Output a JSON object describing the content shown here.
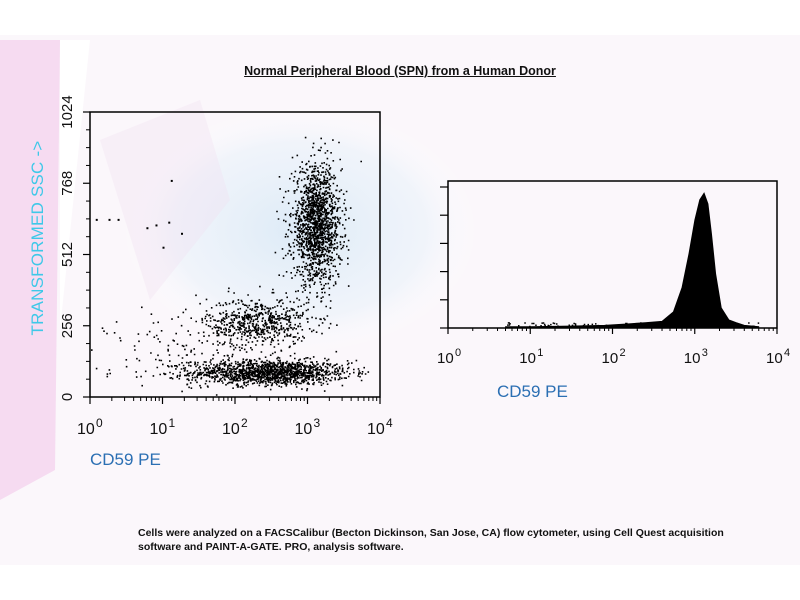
{
  "title": "Normal Peripheral Blood (SPN) from a Human Donor",
  "footnote": "Cells were analyzed on a FACSCalibur (Becton Dickinson, San Jose, CA) flow cytometer, using Cell Quest acquisition software and PAINT-A-GATE. PRO, analysis software.",
  "colors": {
    "ylabel": "#3ec8e8",
    "xlabel": "#2b6fb3",
    "points": "#000000"
  },
  "chart_data": [
    {
      "type": "scatter",
      "title": "",
      "xlabel": "CD59 PE",
      "ylabel": "TRANSFORMED SSC ->",
      "x_scale": "log",
      "xlim": [
        1,
        10000
      ],
      "ylim": [
        0,
        1024
      ],
      "x_ticks": [
        {
          "base": "10",
          "exp": "0"
        },
        {
          "base": "10",
          "exp": "1"
        },
        {
          "base": "10",
          "exp": "2"
        },
        {
          "base": "10",
          "exp": "3"
        },
        {
          "base": "10",
          "exp": "4"
        }
      ],
      "y_ticks": [
        "0",
        "256",
        "512",
        "768",
        "1024"
      ],
      "populations": [
        {
          "x_center": 300,
          "y_center": 90,
          "x_spread_decades": 0.55,
          "y_spread": 22,
          "count": 1400
        },
        {
          "x_center": 200,
          "y_center": 270,
          "x_spread_decades": 0.35,
          "y_spread": 45,
          "count": 600
        },
        {
          "x_center": 1300,
          "y_center": 620,
          "x_spread_decades": 0.17,
          "y_spread": 105,
          "count": 1500
        },
        {
          "x_center": 30,
          "y_center": 150,
          "x_spread_decades": 0.6,
          "y_spread": 90,
          "count": 160
        }
      ],
      "outlier_points": [
        {
          "x": 1.2,
          "y": 640
        },
        {
          "x": 1.8,
          "y": 640
        },
        {
          "x": 2.4,
          "y": 640
        },
        {
          "x": 6,
          "y": 610
        },
        {
          "x": 8,
          "y": 620
        },
        {
          "x": 12,
          "y": 630
        },
        {
          "x": 10,
          "y": 540
        },
        {
          "x": 13,
          "y": 780
        },
        {
          "x": 18,
          "y": 590
        }
      ]
    },
    {
      "type": "area",
      "title": "",
      "xlabel": "CD59 PE",
      "ylabel": "",
      "x_scale": "log",
      "xlim": [
        1,
        10000
      ],
      "x_ticks": [
        {
          "base": "10",
          "exp": "0"
        },
        {
          "base": "10",
          "exp": "1"
        },
        {
          "base": "10",
          "exp": "2"
        },
        {
          "base": "10",
          "exp": "3"
        },
        {
          "base": "10",
          "exp": "4"
        }
      ],
      "x": [
        5,
        10,
        30,
        80,
        150,
        250,
        400,
        550,
        700,
        850,
        1000,
        1150,
        1300,
        1450,
        1600,
        1800,
        2100,
        2600,
        3200,
        4000,
        6000
      ],
      "y": [
        1,
        1,
        1.5,
        2,
        3,
        4,
        5,
        12,
        30,
        55,
        80,
        95,
        100,
        92,
        70,
        40,
        15,
        6,
        4,
        2,
        1
      ]
    }
  ]
}
